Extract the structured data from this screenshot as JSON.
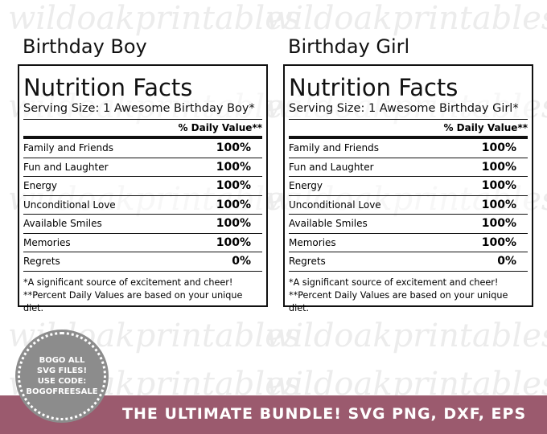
{
  "watermark": "wildoakprintables",
  "labels": [
    {
      "heading": "Birthday Boy",
      "title": "Nutrition Facts",
      "serving_size": "Serving Size: 1 Awesome Birthday Boy*",
      "daily_value_header": "% Daily Value**",
      "rows": [
        {
          "name": "Family and Friends",
          "value": "100%"
        },
        {
          "name": "Fun and Laughter",
          "value": "100%"
        },
        {
          "name": "Energy",
          "value": "100%"
        },
        {
          "name": "Unconditional Love",
          "value": "100%"
        },
        {
          "name": "Available Smiles",
          "value": "100%"
        },
        {
          "name": "Memories",
          "value": "100%"
        },
        {
          "name": "Regrets",
          "value": "0%"
        }
      ],
      "footnotes": [
        "*A significant source of excitement and cheer!",
        "**Percent Daily Values are based on your unique diet."
      ]
    },
    {
      "heading": "Birthday Girl",
      "title": "Nutrition Facts",
      "serving_size": "Serving Size: 1 Awesome Birthday Girl*",
      "daily_value_header": "% Daily Value**",
      "rows": [
        {
          "name": "Family and Friends",
          "value": "100%"
        },
        {
          "name": "Fun and Laughter",
          "value": "100%"
        },
        {
          "name": "Energy",
          "value": "100%"
        },
        {
          "name": "Unconditional Love",
          "value": "100%"
        },
        {
          "name": "Available Smiles",
          "value": "100%"
        },
        {
          "name": "Memories",
          "value": "100%"
        },
        {
          "name": "Regrets",
          "value": "0%"
        }
      ],
      "footnotes": [
        "*A significant source of excitement and cheer!",
        "**Percent Daily Values are based on your unique diet."
      ]
    }
  ],
  "badge": {
    "lines": [
      "BOGO ALL",
      "SVG FILES!",
      "USE CODE:",
      "BOGOFREESALE"
    ]
  },
  "banner": "THE ULTIMATE BUNDLE! SVG PNG, DXF, EPS"
}
